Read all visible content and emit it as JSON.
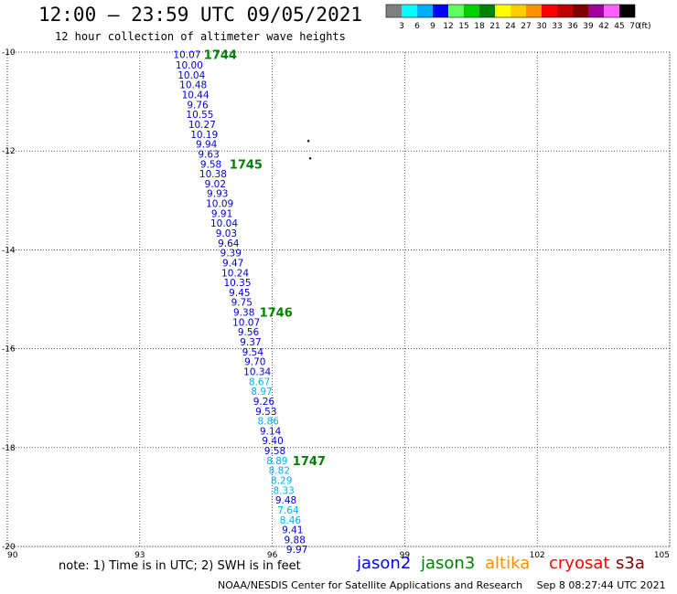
{
  "header": {
    "title": "12:00 — 23:59 UTC 09/05/2021",
    "subtitle": "12 hour collection of altimeter wave heights"
  },
  "legend": {
    "labels": [
      "3",
      "6",
      "9",
      "12",
      "15",
      "18",
      "21",
      "24",
      "27",
      "30",
      "33",
      "36",
      "39",
      "42",
      "45",
      "70"
    ],
    "unit": "(ft)",
    "colors": [
      "#808080",
      "#00ffff",
      "#00b0ff",
      "#0000ff",
      "#60ff60",
      "#00d000",
      "#008000",
      "#ffff00",
      "#ffd000",
      "#ff9000",
      "#ff0000",
      "#c00000",
      "#800000",
      "#a000a0",
      "#ff60ff",
      "#000000"
    ]
  },
  "footer": {
    "note": "note: 1) Time is in UTC; 2) SWH is in feet",
    "satellites": [
      {
        "name": "jason2",
        "color": "#0000ff"
      },
      {
        "name": "jason3",
        "color": "#008000"
      },
      {
        "name": "altika",
        "color": "#ff9000"
      },
      {
        "name": "cryosat",
        "color": "#ff0000"
      },
      {
        "name": "s3a",
        "color": "#800000"
      }
    ],
    "credit": "NOAA/NESDIS Center for Satellite Applications and Research",
    "timestamp": "Sep  8 08:27:44 UTC 2021"
  },
  "chart_data": {
    "type": "scatter",
    "xlim": [
      90,
      105
    ],
    "ylim": [
      -20,
      -10
    ],
    "x_ticks": [
      "90",
      "93",
      "96",
      "99",
      "102",
      "105"
    ],
    "y_ticks": [
      "-10",
      "-12",
      "-14",
      "-16",
      "-18",
      "-20"
    ],
    "grid": true,
    "grid_style": "dotted",
    "series_color": "#0000dd",
    "points": [
      {
        "lon": 94.07,
        "lat": -10.05,
        "v": "10.07",
        "c": "#0000dd"
      },
      {
        "lon": 94.12,
        "lat": -10.26,
        "v": "10.00",
        "c": "#0000dd"
      },
      {
        "lon": 94.17,
        "lat": -10.46,
        "v": "10.04",
        "c": "#0000dd"
      },
      {
        "lon": 94.21,
        "lat": -10.66,
        "v": "10.48",
        "c": "#0000dd"
      },
      {
        "lon": 94.26,
        "lat": -10.86,
        "v": "10.44",
        "c": "#0000dd"
      },
      {
        "lon": 94.31,
        "lat": -11.06,
        "v": "9.76",
        "c": "#0000dd"
      },
      {
        "lon": 94.36,
        "lat": -11.26,
        "v": "10.55",
        "c": "#0000dd"
      },
      {
        "lon": 94.41,
        "lat": -11.46,
        "v": "10.27",
        "c": "#0000dd"
      },
      {
        "lon": 94.46,
        "lat": -11.66,
        "v": "10.19",
        "c": "#0000dd"
      },
      {
        "lon": 94.51,
        "lat": -11.86,
        "v": "9.94",
        "c": "#0000dd"
      },
      {
        "lon": 94.56,
        "lat": -12.06,
        "v": "9.63",
        "c": "#0000dd"
      },
      {
        "lon": 94.61,
        "lat": -12.26,
        "v": "9.58",
        "c": "#0000dd"
      },
      {
        "lon": 94.66,
        "lat": -12.46,
        "v": "10.38",
        "c": "#0000dd"
      },
      {
        "lon": 94.71,
        "lat": -12.66,
        "v": "9.02",
        "c": "#0000dd"
      },
      {
        "lon": 94.76,
        "lat": -12.86,
        "v": "9.93",
        "c": "#0000dd"
      },
      {
        "lon": 94.81,
        "lat": -13.06,
        "v": "10.09",
        "c": "#0000dd"
      },
      {
        "lon": 94.86,
        "lat": -13.26,
        "v": "9.91",
        "c": "#0000dd"
      },
      {
        "lon": 94.91,
        "lat": -13.46,
        "v": "10.04",
        "c": "#0000dd"
      },
      {
        "lon": 94.96,
        "lat": -13.66,
        "v": "9.03",
        "c": "#0000dd"
      },
      {
        "lon": 95.01,
        "lat": -13.86,
        "v": "9.64",
        "c": "#0000dd"
      },
      {
        "lon": 95.06,
        "lat": -14.06,
        "v": "9.39",
        "c": "#0000dd"
      },
      {
        "lon": 95.11,
        "lat": -14.26,
        "v": "9.47",
        "c": "#0000dd"
      },
      {
        "lon": 95.16,
        "lat": -14.46,
        "v": "10.24",
        "c": "#0000dd"
      },
      {
        "lon": 95.21,
        "lat": -14.66,
        "v": "10.35",
        "c": "#0000dd"
      },
      {
        "lon": 95.26,
        "lat": -14.86,
        "v": "9.45",
        "c": "#0000dd"
      },
      {
        "lon": 95.31,
        "lat": -15.06,
        "v": "9.75",
        "c": "#0000dd"
      },
      {
        "lon": 95.36,
        "lat": -15.26,
        "v": "9.38",
        "c": "#0000dd"
      },
      {
        "lon": 95.41,
        "lat": -15.46,
        "v": "10.07",
        "c": "#0000dd"
      },
      {
        "lon": 95.46,
        "lat": -15.66,
        "v": "9.56",
        "c": "#0000dd"
      },
      {
        "lon": 95.51,
        "lat": -15.86,
        "v": "9.37",
        "c": "#0000dd"
      },
      {
        "lon": 95.56,
        "lat": -16.06,
        "v": "9.54",
        "c": "#0000dd"
      },
      {
        "lon": 95.61,
        "lat": -16.26,
        "v": "9.70",
        "c": "#0000dd"
      },
      {
        "lon": 95.66,
        "lat": -16.46,
        "v": "10.34",
        "c": "#0000dd"
      },
      {
        "lon": 95.71,
        "lat": -16.66,
        "v": "8.67",
        "c": "#00b0ff"
      },
      {
        "lon": 95.76,
        "lat": -16.86,
        "v": "8.97",
        "c": "#00b0ff"
      },
      {
        "lon": 95.81,
        "lat": -17.06,
        "v": "9.26",
        "c": "#0000dd"
      },
      {
        "lon": 95.86,
        "lat": -17.26,
        "v": "9.53",
        "c": "#0000dd"
      },
      {
        "lon": 95.91,
        "lat": -17.46,
        "v": "8.86",
        "c": "#00b0ff"
      },
      {
        "lon": 95.96,
        "lat": -17.66,
        "v": "9.14",
        "c": "#0000dd"
      },
      {
        "lon": 96.01,
        "lat": -17.86,
        "v": "9.40",
        "c": "#0000dd"
      },
      {
        "lon": 96.06,
        "lat": -18.06,
        "v": "9.58",
        "c": "#0000dd"
      },
      {
        "lon": 96.11,
        "lat": -18.26,
        "v": "8.89",
        "c": "#00b0ff"
      },
      {
        "lon": 96.16,
        "lat": -18.46,
        "v": "8.82",
        "c": "#00b0ff"
      },
      {
        "lon": 96.21,
        "lat": -18.66,
        "v": "8.29",
        "c": "#00b0ff"
      },
      {
        "lon": 96.26,
        "lat": -18.86,
        "v": "8.33",
        "c": "#00b0ff"
      },
      {
        "lon": 96.31,
        "lat": -19.06,
        "v": "9.48",
        "c": "#0000dd"
      },
      {
        "lon": 96.36,
        "lat": -19.26,
        "v": "7.64",
        "c": "#00b0ff"
      },
      {
        "lon": 96.41,
        "lat": -19.46,
        "v": "8.46",
        "c": "#00b0ff"
      },
      {
        "lon": 96.46,
        "lat": -19.66,
        "v": "9.41",
        "c": "#0000dd"
      },
      {
        "lon": 96.51,
        "lat": -19.86,
        "v": "9.88",
        "c": "#0000dd"
      },
      {
        "lon": 96.56,
        "lat": -20.06,
        "v": "9.97",
        "c": "#0000dd"
      }
    ],
    "time_labels": [
      {
        "text": "1744",
        "lon": 94.45,
        "lat": -10.05
      },
      {
        "text": "1745",
        "lon": 95.03,
        "lat": -12.26
      },
      {
        "text": "1746",
        "lon": 95.71,
        "lat": -15.26
      },
      {
        "text": "1747",
        "lon": 96.46,
        "lat": -18.26
      }
    ],
    "time_label_color": "#008000",
    "island_points": [
      {
        "lon": 96.82,
        "lat": -11.8
      },
      {
        "lon": 96.86,
        "lat": -12.15
      }
    ]
  }
}
